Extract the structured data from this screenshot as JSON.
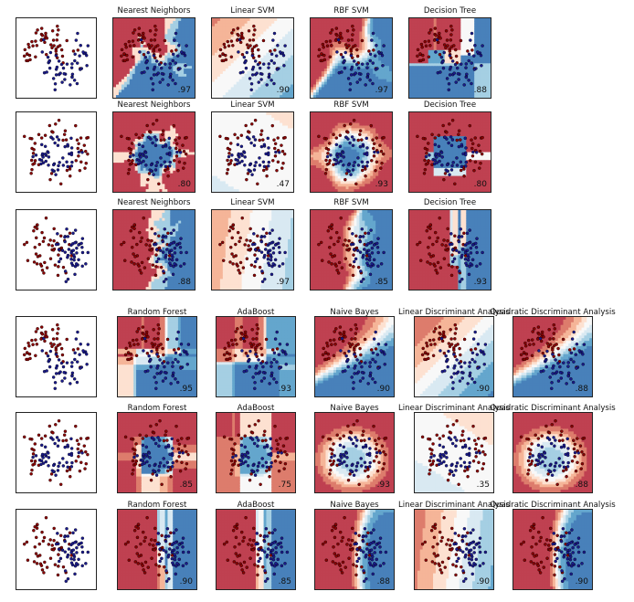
{
  "chart_data": {
    "type": "scatter",
    "colors": {
      "class_a": "#b2182b",
      "class_b": "#2166ac",
      "point_a": "#8b0000",
      "point_b": "#1a1a8c"
    },
    "datasets": [
      "moons",
      "circles",
      "linearly_separable"
    ],
    "groups": [
      {
        "classifiers": [
          "Nearest Neighbors",
          "Linear SVM",
          "RBF SVM",
          "Decision Tree"
        ],
        "rows": [
          {
            "dataset": "moons",
            "scores": [
              ".97",
              ".90",
              ".97",
              ".88"
            ]
          },
          {
            "dataset": "circles",
            "scores": [
              ".80",
              ".47",
              ".93",
              ".80"
            ]
          },
          {
            "dataset": "linearly_separable",
            "scores": [
              ".88",
              ".97",
              ".85",
              ".93"
            ]
          }
        ]
      },
      {
        "classifiers": [
          "Random Forest",
          "AdaBoost",
          "Naive Bayes",
          "Linear Discriminant Analysis",
          "Quadratic Discriminant Analysis"
        ],
        "rows": [
          {
            "dataset": "moons",
            "scores": [
              ".95",
              ".93",
              ".90",
              ".90",
              ".88"
            ]
          },
          {
            "dataset": "circles",
            "scores": [
              ".85",
              ".75",
              ".93",
              ".35",
              ".88"
            ]
          },
          {
            "dataset": "linearly_separable",
            "scores": [
              ".90",
              ".85",
              ".88",
              ".90",
              ".90"
            ]
          }
        ]
      }
    ]
  }
}
